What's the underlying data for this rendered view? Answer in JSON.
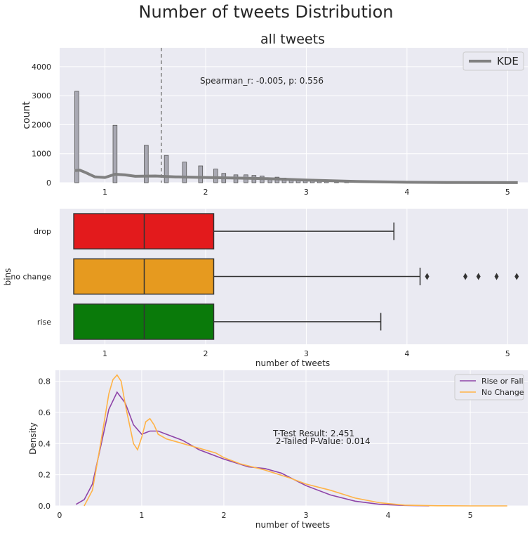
{
  "suptitle": "Number of tweets Distribution",
  "colors": {
    "panel_bg": "#eaeaf2",
    "hist": "#a9a9b3",
    "kde": "#808080",
    "drop": "#e31a1c",
    "no_change": "#e69a1f",
    "rise": "#0a7a0a",
    "rise_or_fall": "#8e44a8",
    "no_change_line": "#ffb347"
  },
  "chart_data": [
    {
      "type": "bar",
      "title": "all tweets",
      "xlabel": "",
      "ylabel": "count",
      "xlim": [
        0.55,
        5.2
      ],
      "ylim": [
        0,
        4650
      ],
      "xticks": [
        1,
        2,
        3,
        4,
        5
      ],
      "yticks": [
        0,
        1000,
        2000,
        3000,
        4000
      ],
      "bar_width": 0.04,
      "bins": [
        {
          "x": 0.72,
          "count": 3150
        },
        {
          "x": 1.1,
          "count": 1980
        },
        {
          "x": 1.41,
          "count": 1290
        },
        {
          "x": 1.61,
          "count": 940
        },
        {
          "x": 1.79,
          "count": 710
        },
        {
          "x": 1.95,
          "count": 580
        },
        {
          "x": 2.1,
          "count": 470
        },
        {
          "x": 2.18,
          "count": 320
        },
        {
          "x": 2.3,
          "count": 270
        },
        {
          "x": 2.4,
          "count": 270
        },
        {
          "x": 2.48,
          "count": 250
        },
        {
          "x": 2.56,
          "count": 230
        },
        {
          "x": 2.64,
          "count": 160
        },
        {
          "x": 2.71,
          "count": 190
        },
        {
          "x": 2.78,
          "count": 160
        },
        {
          "x": 2.85,
          "count": 130
        },
        {
          "x": 2.92,
          "count": 110
        },
        {
          "x": 2.99,
          "count": 90
        },
        {
          "x": 3.06,
          "count": 80
        },
        {
          "x": 3.13,
          "count": 70
        },
        {
          "x": 3.2,
          "count": 50
        },
        {
          "x": 3.3,
          "count": 40
        },
        {
          "x": 3.4,
          "count": 30
        }
      ],
      "kde": {
        "name": "KDE",
        "x": [
          0.7,
          0.75,
          0.8,
          0.9,
          1.0,
          1.1,
          1.2,
          1.3,
          1.5,
          1.7,
          2.0,
          2.3,
          2.6,
          3.0,
          3.5,
          4.0,
          4.5,
          5.1
        ],
        "y": [
          420,
          430,
          360,
          200,
          180,
          290,
          270,
          220,
          230,
          200,
          180,
          160,
          140,
          90,
          40,
          15,
          5,
          2
        ]
      },
      "vline": 1.56,
      "annotation": "Spearman_r: -0.005, p: 0.556",
      "legend": {
        "position": "top-right",
        "entries": [
          "KDE"
        ]
      }
    },
    {
      "type": "box",
      "title": "",
      "xlabel": "number of tweets",
      "ylabel": "bins",
      "xlim": [
        0.55,
        5.2
      ],
      "xticks": [
        1,
        2,
        3,
        4,
        5
      ],
      "categories": [
        "drop",
        "no change",
        "rise"
      ],
      "boxes": [
        {
          "name": "drop",
          "q1": 0.69,
          "median": 1.39,
          "q3": 2.08,
          "whisker_low": 0.69,
          "whisker_high": 3.87,
          "outliers": []
        },
        {
          "name": "no change",
          "q1": 0.69,
          "median": 1.39,
          "q3": 2.08,
          "whisker_low": 0.69,
          "whisker_high": 4.13,
          "outliers": [
            4.2,
            4.58,
            4.71,
            4.89,
            5.09
          ]
        },
        {
          "name": "rise",
          "q1": 0.69,
          "median": 1.39,
          "q3": 2.08,
          "whisker_low": 0.69,
          "whisker_high": 3.74,
          "outliers": []
        }
      ]
    },
    {
      "type": "line",
      "title": "",
      "xlabel": "number of tweets",
      "ylabel": "Density",
      "xlim": [
        -0.05,
        5.7
      ],
      "ylim": [
        0,
        0.87
      ],
      "xticks": [
        0,
        1,
        2,
        3,
        4,
        5
      ],
      "yticks": [
        0.0,
        0.2,
        0.4,
        0.6,
        0.8
      ],
      "series": [
        {
          "name": "Rise or Fall",
          "x": [
            0.2,
            0.3,
            0.4,
            0.5,
            0.6,
            0.7,
            0.8,
            0.9,
            1.0,
            1.1,
            1.2,
            1.3,
            1.5,
            1.7,
            2.0,
            2.3,
            2.5,
            2.7,
            3.0,
            3.3,
            3.6,
            3.9,
            4.2,
            4.5
          ],
          "y": [
            0.01,
            0.04,
            0.14,
            0.38,
            0.62,
            0.73,
            0.66,
            0.52,
            0.46,
            0.48,
            0.48,
            0.46,
            0.42,
            0.36,
            0.3,
            0.25,
            0.24,
            0.21,
            0.13,
            0.07,
            0.03,
            0.01,
            0.003,
            0.0
          ]
        },
        {
          "name": "No Change",
          "x": [
            0.3,
            0.4,
            0.5,
            0.6,
            0.65,
            0.7,
            0.75,
            0.8,
            0.9,
            0.95,
            1.0,
            1.05,
            1.1,
            1.15,
            1.2,
            1.3,
            1.5,
            1.7,
            1.9,
            2.0,
            2.2,
            2.5,
            2.8,
            3.0,
            3.3,
            3.6,
            3.9,
            4.2,
            4.6,
            5.0,
            5.45
          ],
          "y": [
            0.0,
            0.1,
            0.4,
            0.72,
            0.81,
            0.84,
            0.8,
            0.65,
            0.4,
            0.36,
            0.44,
            0.54,
            0.56,
            0.52,
            0.46,
            0.43,
            0.4,
            0.37,
            0.34,
            0.31,
            0.27,
            0.23,
            0.18,
            0.14,
            0.1,
            0.05,
            0.02,
            0.005,
            0.001,
            0.0,
            0.0
          ]
        }
      ],
      "annotation_lines": [
        "T-Test Result: 2.451",
        " 2-Tailed P-Value: 0.014"
      ],
      "legend": {
        "position": "top-right",
        "entries": [
          "Rise or Fall",
          "No Change"
        ]
      }
    }
  ]
}
